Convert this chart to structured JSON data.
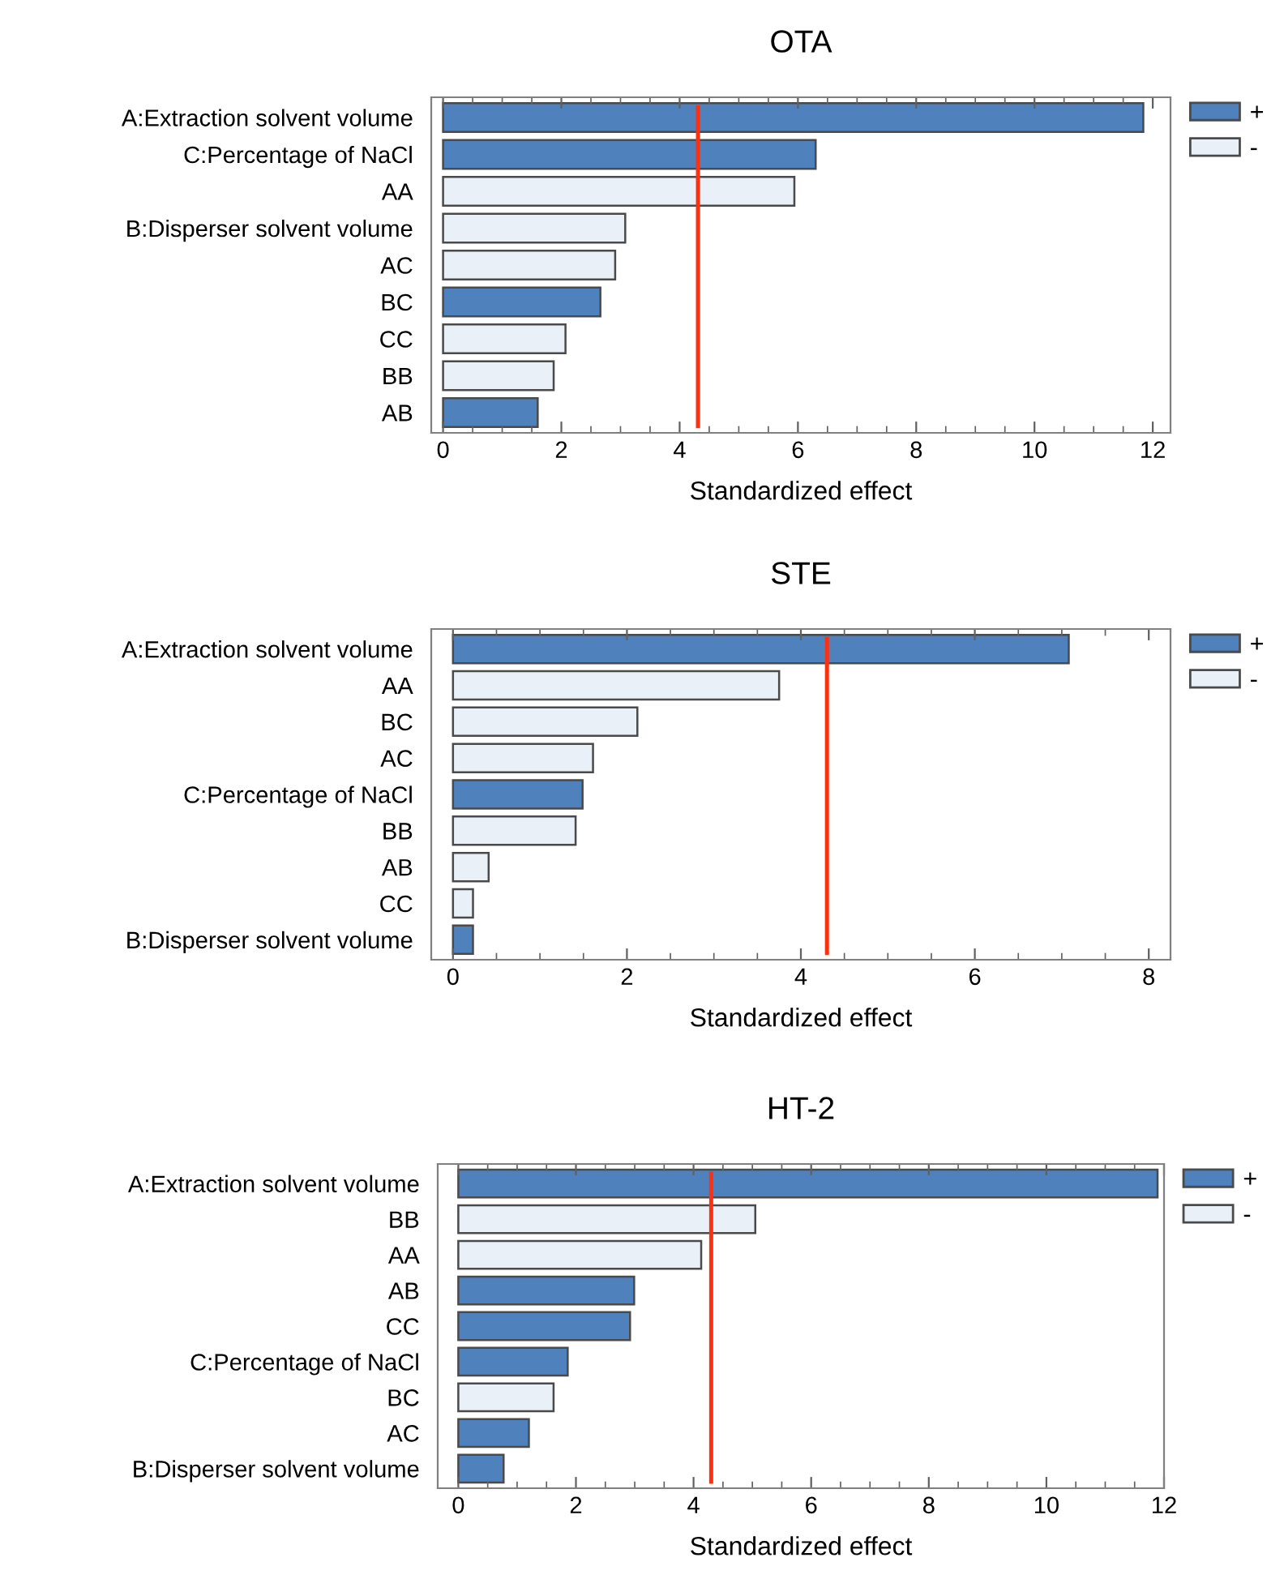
{
  "chart_data": [
    {
      "type": "bar",
      "orientation": "horizontal",
      "title": "OTA",
      "xlabel": "Standardized effect",
      "categories": [
        "A:Extraction solvent volume",
        "C:Percentage of NaCl",
        "AA",
        "B:Disperser solvent volume",
        "AC",
        "BC",
        "CC",
        "BB",
        "AB"
      ],
      "series": [
        {
          "name": "+",
          "color": "#4f81bd",
          "values": [
            11.84,
            6.3,
            null,
            null,
            null,
            2.66,
            null,
            null,
            1.6
          ]
        },
        {
          "name": "-",
          "color": "#e9f0f8",
          "values": [
            null,
            null,
            5.94,
            3.08,
            2.91,
            null,
            2.07,
            1.87,
            null
          ]
        }
      ],
      "xlim": [
        -0.2,
        12.3
      ],
      "xticks": [
        0,
        2,
        4,
        6,
        8,
        10,
        12
      ],
      "ref_lines": [
        {
          "axis": "x",
          "value": 4.31,
          "color": "#ff3010"
        }
      ],
      "legend": "top right",
      "grid": false
    },
    {
      "type": "bar",
      "orientation": "horizontal",
      "title": "STE",
      "xlabel": "Standardized effect",
      "categories": [
        "A:Extraction solvent volume",
        "AA",
        "BC",
        "AC",
        "C:Percentage of NaCl",
        "BB",
        "AB",
        "CC",
        "B:Disperser solvent volume"
      ],
      "series": [
        {
          "name": "+",
          "color": "#4f81bd",
          "values": [
            7.08,
            null,
            null,
            null,
            1.49,
            null,
            null,
            null,
            0.23
          ]
        },
        {
          "name": "-",
          "color": "#e9f0f8",
          "values": [
            null,
            3.75,
            2.12,
            1.61,
            null,
            1.41,
            0.41,
            0.23,
            null
          ]
        }
      ],
      "xlim": [
        -0.25,
        8.25
      ],
      "xticks": [
        0,
        2,
        4,
        6,
        8
      ],
      "ref_lines": [
        {
          "axis": "x",
          "value": 4.3,
          "color": "#ff3010"
        }
      ],
      "legend": "top right",
      "grid": false
    },
    {
      "type": "bar",
      "orientation": "horizontal",
      "title": "HT-2",
      "xlabel": "Standardized effect",
      "categories": [
        "A:Extraction solvent volume",
        "BB",
        "AA",
        "AB",
        "CC",
        "C:Percentage of NaCl",
        "BC",
        "AC",
        "B:Disperser solvent volume"
      ],
      "series": [
        {
          "name": "+",
          "color": "#4f81bd",
          "values": [
            11.89,
            null,
            null,
            2.99,
            2.92,
            1.86,
            null,
            1.2,
            0.77
          ]
        },
        {
          "name": "-",
          "color": "#e9f0f8",
          "values": [
            null,
            5.05,
            4.13,
            null,
            null,
            null,
            1.62,
            null,
            null
          ]
        }
      ],
      "xlim": [
        -0.35,
        12.0
      ],
      "xticks": [
        0,
        2,
        4,
        6,
        8,
        10,
        12
      ],
      "ref_lines": [
        {
          "axis": "x",
          "value": 4.3,
          "color": "#ff3010"
        }
      ],
      "legend": "top right",
      "grid": false
    }
  ]
}
